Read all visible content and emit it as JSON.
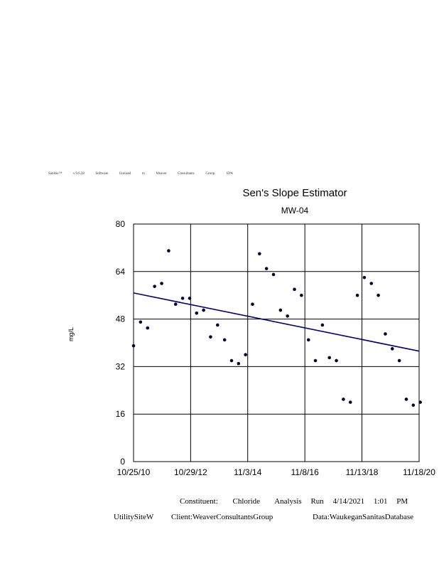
{
  "header": {
    "words": [
      "Sanitas™",
      "v.9.6.28",
      "Software",
      "licensed",
      "to",
      "Weaver",
      "Consultants",
      "Group.",
      "EPA"
    ]
  },
  "chart_data": {
    "type": "scatter",
    "title": "Sen's Slope Estimator",
    "subtitle": "MW-04",
    "ylabel": "mg/L",
    "xlabel": "",
    "ylim": [
      0,
      80
    ],
    "yticks": [
      "0",
      "16",
      "32",
      "48",
      "64",
      "80"
    ],
    "xticks": [
      "10/25/10",
      "10/29/12",
      "11/3/14",
      "11/8/16",
      "11/13/18",
      "11/18/20"
    ],
    "grid": true,
    "series": [
      {
        "x": [
          "10/25/10",
          "1/23/11",
          "4/24/11",
          "7/23/11",
          "10/22/11",
          "1/20/12",
          "4/19/12",
          "7/18/12",
          "10/16/12",
          "1/14/13",
          "4/14/13",
          "7/13/13",
          "10/11/13",
          "1/9/14",
          "4/9/14",
          "7/8/14",
          "10/6/14",
          "1/4/15",
          "4/4/15",
          "7/3/15",
          "10/1/15",
          "12/30/15",
          "3/29/16",
          "6/27/16",
          "9/25/16",
          "12/24/16",
          "3/24/17",
          "6/22/17",
          "9/20/17",
          "12/19/17",
          "3/19/18",
          "6/17/18",
          "9/15/18",
          "12/14/18",
          "3/14/19",
          "6/12/19",
          "9/10/19",
          "12/9/19",
          "3/8/20",
          "6/6/20",
          "9/4/20",
          "12/3/20"
        ],
        "values": [
          39,
          47,
          45,
          59,
          60,
          71,
          53,
          55,
          55,
          50,
          51,
          42,
          46,
          41,
          34,
          33,
          36,
          53,
          70,
          65,
          63,
          51,
          49,
          58,
          56,
          41,
          34,
          46,
          35,
          34,
          21,
          20,
          56,
          62,
          60,
          56,
          43,
          38,
          34,
          21,
          19,
          20
        ]
      }
    ],
    "trend_line": {
      "x": [
        "10/25/10",
        "11/18/20"
      ],
      "y": [
        56.8,
        37.2
      ]
    },
    "colors": {
      "points": "#000033",
      "trend": "#000080"
    }
  },
  "footer": {
    "constituent_label": "Constituent:",
    "constituent": "Chloride",
    "analysis_label": "Analysis",
    "run_label": "Run",
    "run_date": "4/14/2021",
    "run_time": "1:01",
    "run_ampm": "PM",
    "site": "UtilitySiteW",
    "client": "Client:WeaverConsultantsGroup",
    "data": "Data:WaukeganSanitasDatabase"
  }
}
